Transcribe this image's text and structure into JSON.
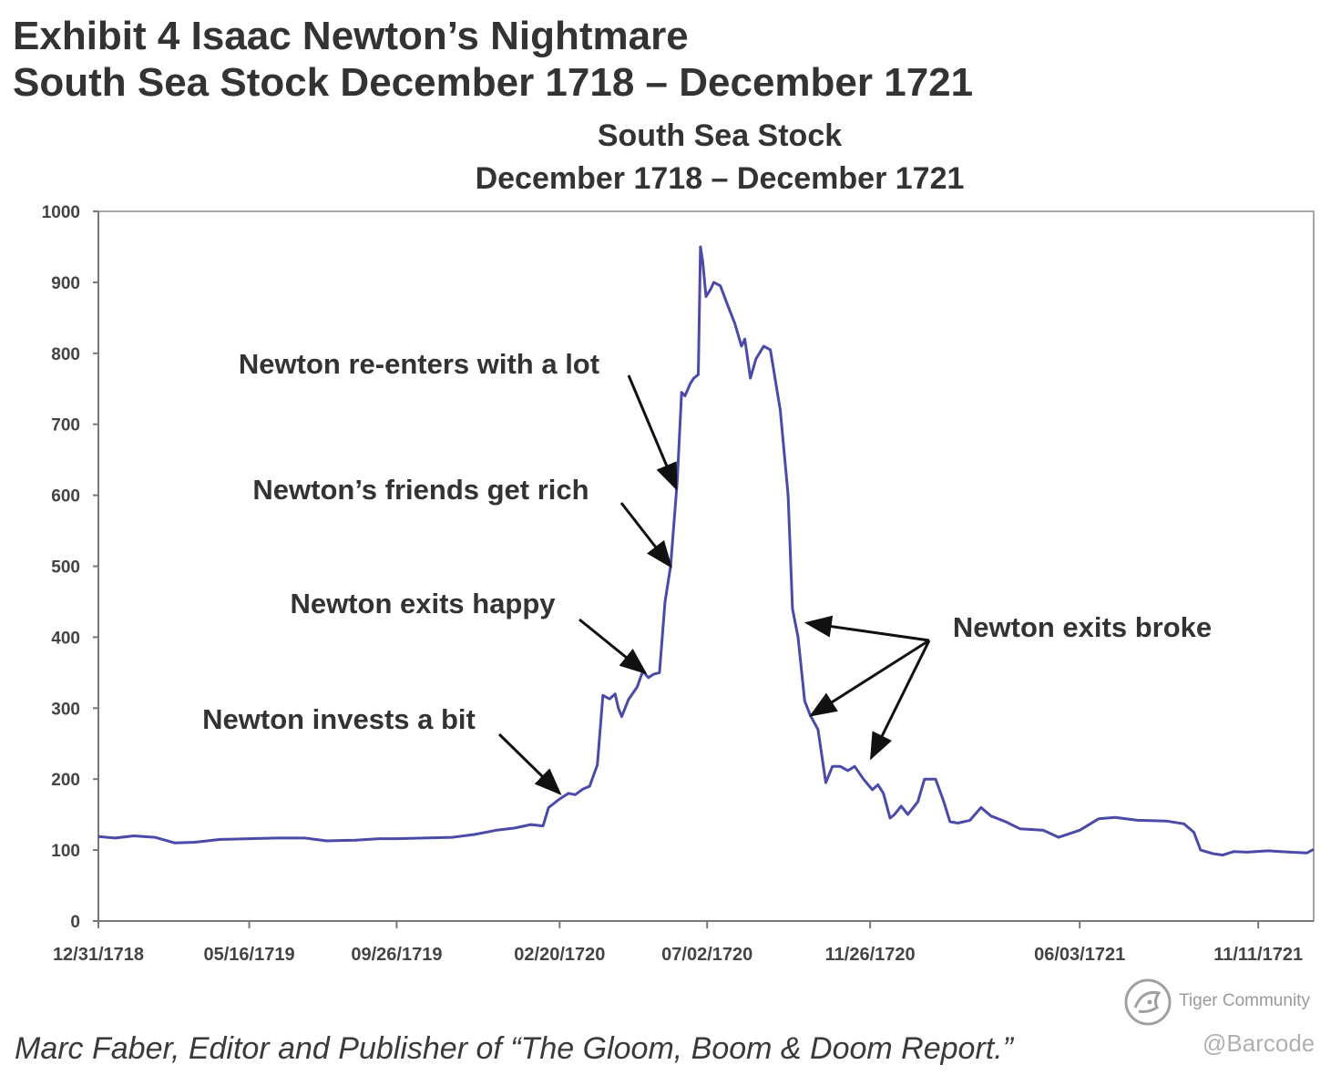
{
  "exhibit": {
    "title_line1": "Exhibit 4  Isaac Newton’s Nightmare",
    "title_line2": "South Sea Stock December 1718 – December 1721"
  },
  "caption": "Marc Faber, Editor and Publisher of “The Gloom, Boom & Doom Report.”",
  "watermark": {
    "community": "Tiger Community",
    "handle": "@Barcode"
  },
  "chart_data": {
    "type": "line",
    "title": "South Sea Stock",
    "subtitle": "December 1718 – December 1721",
    "xlabel": "",
    "ylabel": "",
    "ylim": [
      0,
      1000
    ],
    "yticks": [
      0,
      100,
      200,
      300,
      400,
      500,
      600,
      700,
      800,
      900,
      1000
    ],
    "xlim": [
      "1718-12-31",
      "1721-12-31"
    ],
    "xtick_labels": [
      "12/31/1718",
      "05/16/1719",
      "09/26/1719",
      "02/20/1720",
      "07/02/1720",
      "11/26/1720",
      "06/03/1721",
      "11/11/1721"
    ],
    "xtick_dates": [
      "1718-12-31",
      "1719-05-16",
      "1719-09-26",
      "1720-02-20",
      "1720-07-02",
      "1720-11-26",
      "1721-06-03",
      "1721-11-11"
    ],
    "grid": false,
    "line_color": "#4a4aa8",
    "series": [
      {
        "points": [
          [
            "1718-12-31",
            119
          ],
          [
            "1719-01-15",
            117
          ],
          [
            "1719-02-01",
            120
          ],
          [
            "1719-02-20",
            118
          ],
          [
            "1719-03-10",
            110
          ],
          [
            "1719-03-28",
            111
          ],
          [
            "1719-04-20",
            115
          ],
          [
            "1719-05-16",
            116
          ],
          [
            "1719-06-10",
            117
          ],
          [
            "1719-07-05",
            117
          ],
          [
            "1719-07-25",
            113
          ],
          [
            "1719-08-20",
            114
          ],
          [
            "1719-09-10",
            116
          ],
          [
            "1719-09-26",
            116
          ],
          [
            "1719-10-20",
            117
          ],
          [
            "1719-11-15",
            118
          ],
          [
            "1719-12-05",
            122
          ],
          [
            "1719-12-25",
            128
          ],
          [
            "1720-01-10",
            131
          ],
          [
            "1720-01-25",
            136
          ],
          [
            "1720-02-05",
            134
          ],
          [
            "1720-02-10",
            160
          ],
          [
            "1720-02-20",
            172
          ],
          [
            "1720-02-28",
            180
          ],
          [
            "1720-03-05",
            178
          ],
          [
            "1720-03-12",
            186
          ],
          [
            "1720-03-18",
            190
          ],
          [
            "1720-03-25",
            220
          ],
          [
            "1720-03-30",
            318
          ],
          [
            "1720-04-05",
            313
          ],
          [
            "1720-04-10",
            320
          ],
          [
            "1720-04-13",
            300
          ],
          [
            "1720-04-16",
            288
          ],
          [
            "1720-04-22",
            312
          ],
          [
            "1720-04-30",
            330
          ],
          [
            "1720-05-05",
            352
          ],
          [
            "1720-05-10",
            343
          ],
          [
            "1720-05-15",
            348
          ],
          [
            "1720-05-20",
            350
          ],
          [
            "1720-05-25",
            450
          ],
          [
            "1720-05-30",
            500
          ],
          [
            "1720-06-05",
            620
          ],
          [
            "1720-06-09",
            745
          ],
          [
            "1720-06-12",
            740
          ],
          [
            "1720-06-17",
            758
          ],
          [
            "1720-06-20",
            765
          ],
          [
            "1720-06-24",
            770
          ],
          [
            "1720-06-26",
            950
          ],
          [
            "1720-06-28",
            930
          ],
          [
            "1720-07-01",
            880
          ],
          [
            "1720-07-05",
            890
          ],
          [
            "1720-07-08",
            900
          ],
          [
            "1720-07-14",
            895
          ],
          [
            "1720-07-20",
            870
          ],
          [
            "1720-07-27",
            842
          ],
          [
            "1720-08-02",
            810
          ],
          [
            "1720-08-05",
            820
          ],
          [
            "1720-08-10",
            765
          ],
          [
            "1720-08-15",
            792
          ],
          [
            "1720-08-22",
            810
          ],
          [
            "1720-08-28",
            805
          ],
          [
            "1720-09-06",
            720
          ],
          [
            "1720-09-13",
            600
          ],
          [
            "1720-09-17",
            440
          ],
          [
            "1720-09-22",
            400
          ],
          [
            "1720-09-28",
            310
          ],
          [
            "1720-10-03",
            290
          ],
          [
            "1720-10-10",
            270
          ],
          [
            "1720-10-17",
            195
          ],
          [
            "1720-10-23",
            218
          ],
          [
            "1720-10-30",
            218
          ],
          [
            "1720-11-06",
            212
          ],
          [
            "1720-11-12",
            218
          ],
          [
            "1720-11-20",
            200
          ],
          [
            "1720-11-28",
            185
          ],
          [
            "1720-12-03",
            192
          ],
          [
            "1720-12-08",
            180
          ],
          [
            "1720-12-14",
            145
          ],
          [
            "1720-12-18",
            150
          ],
          [
            "1720-12-24",
            162
          ],
          [
            "1720-12-30",
            150
          ],
          [
            "1721-01-08",
            168
          ],
          [
            "1721-01-14",
            200
          ],
          [
            "1721-01-24",
            200
          ],
          [
            "1721-01-31",
            170
          ],
          [
            "1721-02-06",
            140
          ],
          [
            "1721-02-13",
            138
          ],
          [
            "1721-02-24",
            142
          ],
          [
            "1721-03-06",
            160
          ],
          [
            "1721-03-15",
            148
          ],
          [
            "1721-03-28",
            140
          ],
          [
            "1721-04-10",
            130
          ],
          [
            "1721-05-01",
            128
          ],
          [
            "1721-05-15",
            118
          ],
          [
            "1721-06-03",
            128
          ],
          [
            "1721-06-20",
            144
          ],
          [
            "1721-07-05",
            146
          ],
          [
            "1721-07-25",
            142
          ],
          [
            "1721-08-20",
            141
          ],
          [
            "1721-09-05",
            137
          ],
          [
            "1721-09-14",
            125
          ],
          [
            "1721-09-20",
            100
          ],
          [
            "1721-10-01",
            95
          ],
          [
            "1721-10-10",
            93
          ],
          [
            "1721-10-20",
            98
          ],
          [
            "1721-11-01",
            97
          ],
          [
            "1721-11-20",
            99
          ],
          [
            "1721-12-10",
            97
          ],
          [
            "1721-12-25",
            96
          ],
          [
            "1721-12-31",
            101
          ]
        ]
      }
    ],
    "annotations": [
      {
        "text": "Newton re-enters with a lot",
        "target": [
          [
            "1720-06-04",
            610
          ]
        ]
      },
      {
        "text": "Newton’s friends get rich",
        "target": [
          [
            "1720-05-30",
            500
          ]
        ]
      },
      {
        "text": "Newton exits happy",
        "target": [
          [
            "1720-05-07",
            350
          ]
        ]
      },
      {
        "text": "Newton invests a bit",
        "target": [
          [
            "1720-02-20",
            180
          ]
        ]
      },
      {
        "text": "Newton exits broke",
        "target": [
          [
            "1720-09-30",
            420
          ],
          [
            "1720-10-04",
            290
          ],
          [
            "1720-11-27",
            230
          ]
        ]
      }
    ]
  }
}
